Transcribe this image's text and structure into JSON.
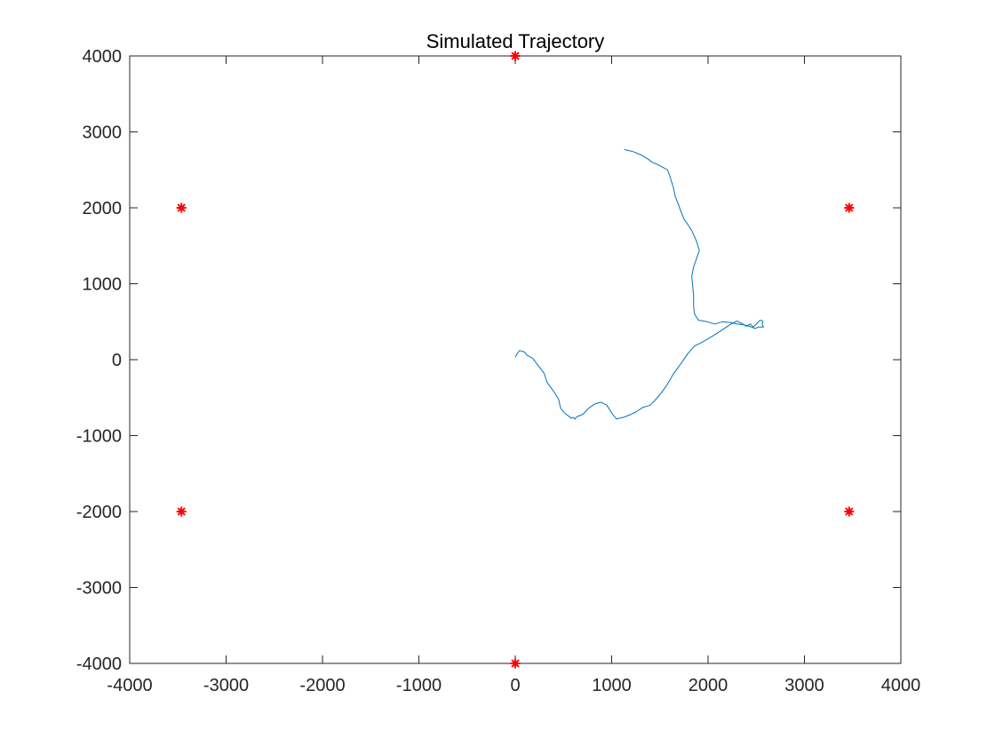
{
  "chart_data": {
    "type": "line",
    "title": "Simulated Trajectory",
    "xlabel": "",
    "ylabel": "",
    "xlim": [
      -4000,
      4000
    ],
    "ylim": [
      -4000,
      4000
    ],
    "xticks": [
      -4000,
      -3000,
      -2000,
      -1000,
      0,
      1000,
      2000,
      3000,
      4000
    ],
    "yticks": [
      -4000,
      -3000,
      -2000,
      -1000,
      0,
      1000,
      2000,
      3000,
      4000
    ],
    "grid": false,
    "box": true,
    "series": [
      {
        "kind": "line",
        "color": "#0072BD",
        "x": [
          0,
          20,
          45,
          100,
          120,
          180,
          240,
          300,
          330,
          400,
          450,
          470,
          510,
          550,
          580,
          600,
          620,
          640,
          700,
          760,
          830,
          890,
          950,
          1010,
          1050,
          1120,
          1200,
          1250,
          1320,
          1400,
          1460,
          1520,
          1580,
          1640,
          1720,
          1790,
          1860,
          1940,
          2020,
          2120,
          2180,
          2240,
          2300,
          2360,
          2400,
          2440,
          2470,
          2510,
          2530,
          2550,
          2570,
          2560,
          2575,
          2520,
          2490,
          2430,
          2370,
          2300,
          2230,
          2150,
          2070,
          1990,
          1900,
          1860,
          1850,
          1850,
          1840,
          1830,
          1850,
          1880,
          1910,
          1880,
          1830,
          1780,
          1750,
          1720,
          1690,
          1660,
          1640,
          1620,
          1600,
          1580,
          1550,
          1520,
          1490,
          1460,
          1420,
          1380,
          1340,
          1300,
          1260,
          1220,
          1190,
          1150,
          1130
        ],
        "y": [
          30,
          80,
          120,
          100,
          60,
          20,
          -80,
          -180,
          -300,
          -420,
          -520,
          -640,
          -700,
          -740,
          -770,
          -760,
          -780,
          -750,
          -720,
          -640,
          -580,
          -560,
          -600,
          -720,
          -780,
          -760,
          -720,
          -690,
          -630,
          -600,
          -520,
          -430,
          -320,
          -190,
          -50,
          80,
          180,
          230,
          290,
          370,
          420,
          470,
          510,
          470,
          440,
          470,
          430,
          480,
          510,
          520,
          500,
          470,
          430,
          430,
          410,
          440,
          460,
          470,
          490,
          500,
          470,
          500,
          520,
          600,
          700,
          850,
          980,
          1100,
          1220,
          1330,
          1440,
          1560,
          1700,
          1800,
          1850,
          1950,
          2050,
          2150,
          2270,
          2350,
          2430,
          2500,
          2520,
          2540,
          2560,
          2580,
          2600,
          2640,
          2670,
          2700,
          2720,
          2740,
          2750,
          2760,
          2770
        ]
      },
      {
        "kind": "markers",
        "marker": "*",
        "color": "#FF0000",
        "x": [
          0,
          3464,
          3464,
          0,
          -3464,
          -3464
        ],
        "y": [
          4000,
          2000,
          -2000,
          -4000,
          -2000,
          2000
        ]
      }
    ]
  }
}
